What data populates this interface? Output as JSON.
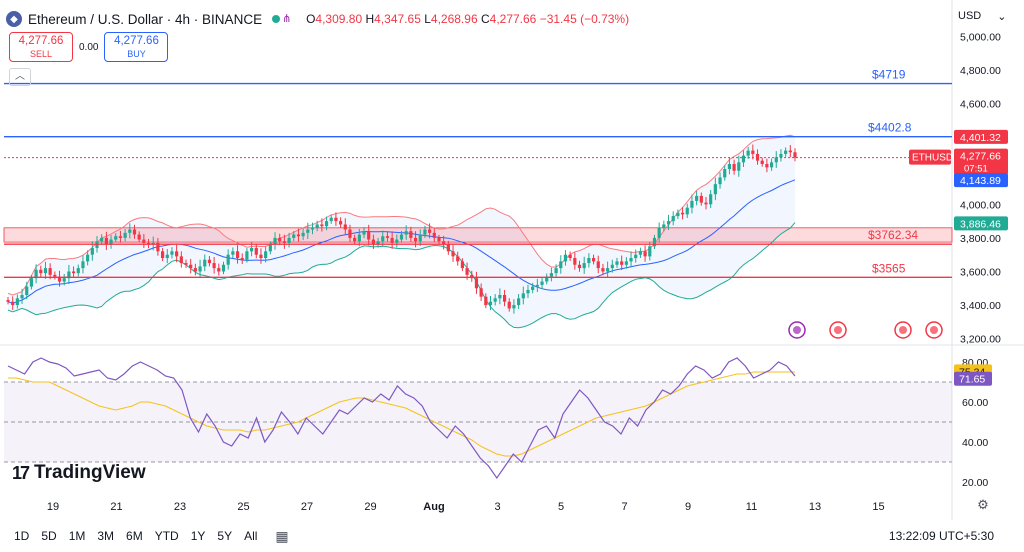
{
  "header": {
    "symbol_title": "Ethereum / U.S. Dollar · 4h · BINANCE",
    "open_label": "O",
    "open": "4,309.80",
    "high_label": "H",
    "high": "4,347.65",
    "low_label": "L",
    "low": "4,268.96",
    "close_label": "C",
    "close": "4,277.66",
    "change": "−31.45 (−0.73%)"
  },
  "trade": {
    "sell_price": "4,277.66",
    "sell_label": "SELL",
    "spread": "0.00",
    "buy_price": "4,277.66",
    "buy_label": "BUY"
  },
  "currency": "USD",
  "colors": {
    "up": "#22ab94",
    "down": "#f23645",
    "accent": "#2962ff",
    "rsi": "#7e57c2",
    "rsi_ma": "#f5c21b",
    "bb_upper": "#f77c80",
    "bb_lower": "#22ab94",
    "sma": "#2962ff"
  },
  "icons": {
    "logo": "ethereum-logo-icon",
    "collapse": "chevron-up-icon",
    "settings": "gear-icon",
    "calendar": "calendar-icon",
    "event": "lightning-icon",
    "flag": "us-flag-icon"
  },
  "levels": [
    {
      "label": "$4719",
      "value": 4719,
      "color": "#2962ff"
    },
    {
      "label": "$4402.8",
      "value": 4402.8,
      "color": "#2962ff"
    },
    {
      "label": "$3762.34",
      "value": 3762.34,
      "color": "#f23645"
    },
    {
      "label": "$3565",
      "value": 3565,
      "color": "#f23645"
    }
  ],
  "price_tags": [
    {
      "text": "4,401.32",
      "value": 4401.32,
      "bg": "#f23645"
    },
    {
      "text": "4,277.66",
      "sub": "07:51",
      "value": 4277.66,
      "bg": "#f23645"
    },
    {
      "text": "4,143.89",
      "value": 4143.89,
      "bg": "#2962ff"
    },
    {
      "text": "3,886.46",
      "value": 3886.46,
      "bg": "#22ab94"
    }
  ],
  "symbol_tag": "ETHUSD",
  "rsi_tags": [
    {
      "text": "75.34",
      "value": 75.34,
      "bg": "#f5c21b",
      "fg": "#131722"
    },
    {
      "text": "71.65",
      "value": 71.65,
      "bg": "#7e57c2",
      "fg": "#ffffff"
    }
  ],
  "tradingview_label": "TradingView",
  "ranges": [
    "1D",
    "5D",
    "1M",
    "3M",
    "6M",
    "YTD",
    "1Y",
    "5Y",
    "All"
  ],
  "clock": "13:22:09 UTC+5:30",
  "chart_data": [
    {
      "type": "candlestick",
      "title": "Ethereum / U.S. Dollar · 4h · BINANCE",
      "xlabel": "",
      "ylabel": "",
      "x_ticks": [
        "19",
        "21",
        "23",
        "25",
        "27",
        "29",
        "Aug",
        "3",
        "5",
        "7",
        "9",
        "11",
        "13",
        "15"
      ],
      "y_ticks": [
        "5,000.00",
        "4,800.00",
        "4,600.00",
        "4,400.00",
        "4,200.00",
        "4,000.00",
        "3,800.00",
        "3,600.00",
        "3,400.00",
        "3,200.00"
      ],
      "ylim": [
        3180,
        5050
      ],
      "close_series": [
        3420,
        3400,
        3440,
        3460,
        3510,
        3560,
        3610,
        3590,
        3620,
        3580,
        3570,
        3540,
        3560,
        3600,
        3590,
        3620,
        3660,
        3700,
        3740,
        3780,
        3800,
        3760,
        3790,
        3810,
        3800,
        3830,
        3850,
        3820,
        3790,
        3770,
        3760,
        3770,
        3720,
        3680,
        3700,
        3720,
        3690,
        3650,
        3640,
        3620,
        3600,
        3630,
        3670,
        3650,
        3620,
        3600,
        3640,
        3700,
        3720,
        3680,
        3670,
        3720,
        3740,
        3700,
        3680,
        3720,
        3760,
        3800,
        3780,
        3770,
        3800,
        3820,
        3810,
        3830,
        3850,
        3860,
        3880,
        3870,
        3900,
        3920,
        3900,
        3880,
        3850,
        3800,
        3780,
        3820,
        3840,
        3790,
        3760,
        3780,
        3810,
        3800,
        3770,
        3790,
        3820,
        3840,
        3800,
        3780,
        3820,
        3850,
        3830,
        3800,
        3780,
        3760,
        3720,
        3690,
        3660,
        3620,
        3580,
        3560,
        3500,
        3450,
        3400,
        3420,
        3440,
        3460,
        3420,
        3380,
        3400,
        3440,
        3470,
        3490,
        3510,
        3520,
        3540,
        3570,
        3590,
        3620,
        3660,
        3700,
        3680,
        3640,
        3620,
        3650,
        3680,
        3660,
        3620,
        3600,
        3620,
        3640,
        3660,
        3640,
        3660,
        3680,
        3700,
        3720,
        3690,
        3750,
        3800,
        3860,
        3880,
        3900,
        3930,
        3950,
        3940,
        3980,
        4020,
        4050,
        4010,
        4000,
        4060,
        4120,
        4160,
        4210,
        4240,
        4200,
        4250,
        4290,
        4320,
        4300,
        4260,
        4240,
        4220,
        4250,
        4280,
        4300,
        4320,
        4310,
        4278
      ],
      "bollinger": {
        "sma_end": 4143.89,
        "upper_end": 4401.32,
        "lower_end": 3886.46
      },
      "horizontal_lines": [
        4719,
        4402.8,
        3762.34,
        3565
      ],
      "zone": [
        3775,
        3860
      ]
    },
    {
      "type": "line",
      "title": "",
      "ylim": [
        15,
        85
      ],
      "y_ticks": [
        "80.00",
        "60.00",
        "40.00",
        "20.00"
      ],
      "bands": [
        30,
        70
      ],
      "series": [
        {
          "values": [
            78,
            76,
            74,
            80,
            82,
            80,
            79,
            77,
            73,
            74,
            75,
            76,
            72,
            71,
            74,
            78,
            80,
            78,
            76,
            73,
            72,
            66,
            52,
            45,
            54,
            48,
            40,
            38,
            44,
            42,
            52,
            40,
            46,
            55,
            50,
            44,
            52,
            48,
            44,
            50,
            56,
            54,
            58,
            62,
            60,
            64,
            61,
            68,
            64,
            62,
            58,
            50,
            46,
            42,
            48,
            44,
            38,
            32,
            28,
            22,
            28,
            34,
            30,
            38,
            46,
            48,
            42,
            54,
            60,
            66,
            62,
            56,
            50,
            48,
            44,
            52,
            48,
            56,
            60,
            66,
            64,
            68,
            74,
            78,
            76,
            72,
            74,
            80,
            82,
            78,
            72,
            74,
            76,
            80,
            78,
            73
          ]
        },
        {
          "values": [
            72,
            72,
            71,
            70,
            70,
            70,
            68,
            66,
            64,
            62,
            60,
            58,
            57,
            56,
            57,
            58,
            60,
            60,
            59,
            58,
            56,
            54,
            52,
            50,
            48,
            47,
            46,
            46,
            46,
            45,
            46,
            46,
            47,
            48,
            49,
            50,
            52,
            54,
            56,
            58,
            60,
            61,
            62,
            62,
            61,
            60,
            59,
            58,
            57,
            55,
            53,
            51,
            49,
            47,
            45,
            43,
            41,
            38,
            36,
            34,
            33,
            33,
            34,
            36,
            38,
            40,
            42,
            44,
            46,
            48,
            50,
            52,
            53,
            54,
            55,
            56,
            57,
            58,
            60,
            62,
            64,
            66,
            68,
            69,
            70,
            71,
            72,
            73,
            74,
            74,
            75,
            75,
            75,
            75,
            75,
            75
          ]
        }
      ]
    }
  ]
}
